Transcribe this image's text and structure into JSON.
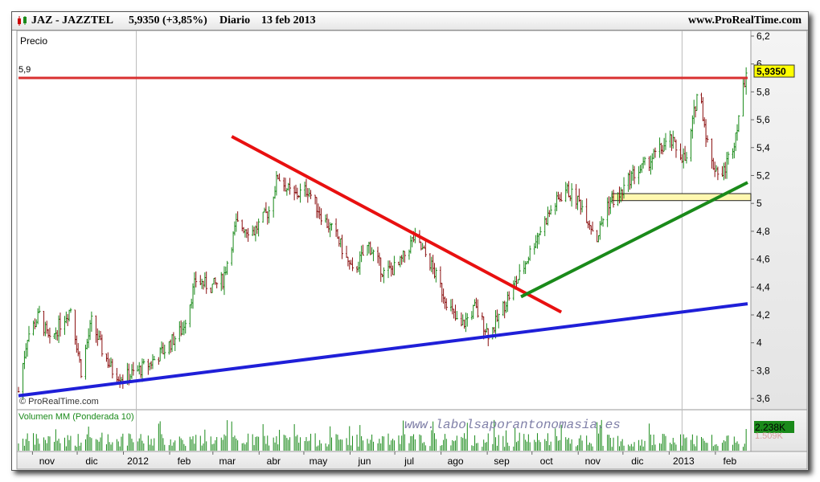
{
  "header": {
    "symbol": "JAZ - JAZZTEL",
    "price_change": "5,9350 (+3,85%)",
    "period": "Diario",
    "date": "13 feb 2013",
    "site": "www.ProRealTime.com"
  },
  "panel_label": "Precio",
  "copyright": "© ProRealTime.com",
  "watermark": "www.labolsaporantonomasia.es",
  "volume_label": "Volumen MM (Ponderada 10)",
  "volume_tags": [
    "2.238K",
    "1.509K"
  ],
  "price_tag": "5,9350",
  "level_label": "5,9",
  "colors": {
    "resistance": "#d93030",
    "downtrend": "#e81010",
    "support_long": "#1f1fd8",
    "support_short": "#1a8a1a",
    "candle_up": "#1a8a1a",
    "candle_down": "#8b1010",
    "zone": "#fff8b0",
    "volume": "#1a8a1a"
  },
  "chart_data": {
    "type": "candlestick",
    "ylim": [
      3.52,
      6.24
    ],
    "y_ticks": [
      "6,2",
      "6",
      "5,8",
      "5,6",
      "5,4",
      "5,2",
      "5",
      "4,8",
      "4,6",
      "4,4",
      "4,2",
      "4",
      "3,8",
      "3,6"
    ],
    "x_ticks": [
      "nov",
      "dic",
      "2012",
      "feb",
      "mar",
      "abr",
      "may",
      "jun",
      "jul",
      "ago",
      "sep",
      "oct",
      "nov",
      "dic",
      "2013",
      "feb"
    ],
    "close_path": [
      [
        "2011-10-14",
        3.65
      ],
      [
        "2011-10-20",
        4.05
      ],
      [
        "2011-10-28",
        4.2
      ],
      [
        "2011-11-04",
        4.0
      ],
      [
        "2011-11-10",
        4.12
      ],
      [
        "2011-11-18",
        4.25
      ],
      [
        "2011-11-25",
        3.8
      ],
      [
        "2011-12-02",
        4.15
      ],
      [
        "2011-12-09",
        3.95
      ],
      [
        "2011-12-16",
        3.8
      ],
      [
        "2011-12-23",
        3.75
      ],
      [
        "2011-12-30",
        3.78
      ],
      [
        "2012-01-10",
        3.85
      ],
      [
        "2012-01-20",
        3.95
      ],
      [
        "2012-02-01",
        4.1
      ],
      [
        "2012-02-10",
        4.45
      ],
      [
        "2012-02-20",
        4.4
      ],
      [
        "2012-02-28",
        4.45
      ],
      [
        "2012-03-08",
        4.85
      ],
      [
        "2012-03-20",
        4.8
      ],
      [
        "2012-03-30",
        4.95
      ],
      [
        "2012-04-05",
        5.2
      ],
      [
        "2012-04-15",
        5.05
      ],
      [
        "2012-04-25",
        5.1
      ],
      [
        "2012-05-05",
        4.9
      ],
      [
        "2012-05-15",
        4.75
      ],
      [
        "2012-05-25",
        4.5
      ],
      [
        "2012-06-05",
        4.7
      ],
      [
        "2012-06-15",
        4.5
      ],
      [
        "2012-06-25",
        4.55
      ],
      [
        "2012-07-05",
        4.75
      ],
      [
        "2012-07-15",
        4.6
      ],
      [
        "2012-07-25",
        4.35
      ],
      [
        "2012-08-05",
        4.1
      ],
      [
        "2012-08-15",
        4.25
      ],
      [
        "2012-08-25",
        4.05
      ],
      [
        "2012-09-05",
        4.3
      ],
      [
        "2012-09-15",
        4.5
      ],
      [
        "2012-09-25",
        4.75
      ],
      [
        "2012-10-05",
        4.95
      ],
      [
        "2012-10-15",
        5.1
      ],
      [
        "2012-10-25",
        5.0
      ],
      [
        "2012-11-05",
        4.75
      ],
      [
        "2012-11-12",
        5.0
      ],
      [
        "2012-11-20",
        5.05
      ],
      [
        "2012-11-28",
        5.2
      ],
      [
        "2012-12-05",
        5.25
      ],
      [
        "2012-12-14",
        5.35
      ],
      [
        "2012-12-24",
        5.45
      ],
      [
        "2013-01-04",
        5.3
      ],
      [
        "2013-01-12",
        5.85
      ],
      [
        "2013-01-20",
        5.3
      ],
      [
        "2013-01-28",
        5.2
      ],
      [
        "2013-02-05",
        5.45
      ],
      [
        "2013-02-13",
        5.935
      ]
    ],
    "lines": [
      {
        "name": "resistance",
        "from": [
          "2011-10-14",
          5.9
        ],
        "to": [
          "2013-02-14",
          5.9
        ]
      },
      {
        "name": "downtrend",
        "from": [
          "2012-03-05",
          5.48
        ],
        "to": [
          "2012-10-12",
          4.22
        ]
      },
      {
        "name": "support_long",
        "from": [
          "2011-10-14",
          3.62
        ],
        "to": [
          "2013-02-14",
          4.28
        ]
      },
      {
        "name": "support_short",
        "from": [
          "2012-09-15",
          4.33
        ],
        "to": [
          "2013-02-14",
          5.15
        ]
      }
    ],
    "zone": {
      "from": "2012-11-15",
      "to": "2013-02-14",
      "low": 5.02,
      "high": 5.07
    },
    "volume_ylim": [
      0,
      2400
    ]
  }
}
